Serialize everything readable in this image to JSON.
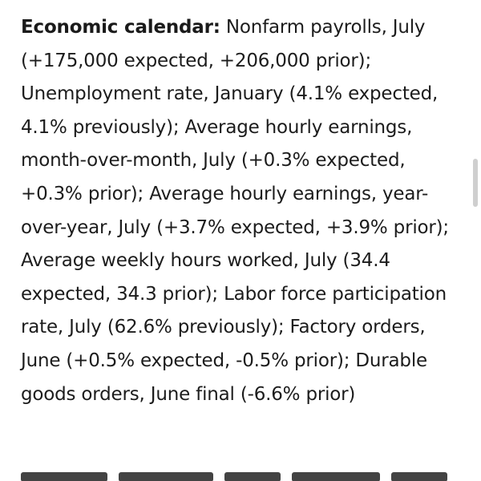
{
  "article": {
    "lead_label": "Economic calendar:",
    "paragraph_text": " Nonfarm payrolls, July (+175,000 expected, +206,000 prior); Unemployment rate, January (4.1% expected, 4.1% previously); Average hourly earnings, month-over-month, July (+0.3% expected, +0.3% prior); Average hourly earnings, year-over-year, July (+3.7% expected, +3.9% prior); Average weekly hours worked, July (34.4 expected, 34.3 prior); Labor force participation rate, July (62.6% previously); Factory orders, June (+0.5% expected, -0.5% prior); Durable goods orders, June final (-6.6% prior)"
  },
  "colors": {
    "background": "#ffffff",
    "text": "#1c1c1c",
    "scrollbar_thumb": "#cfcfcf"
  }
}
